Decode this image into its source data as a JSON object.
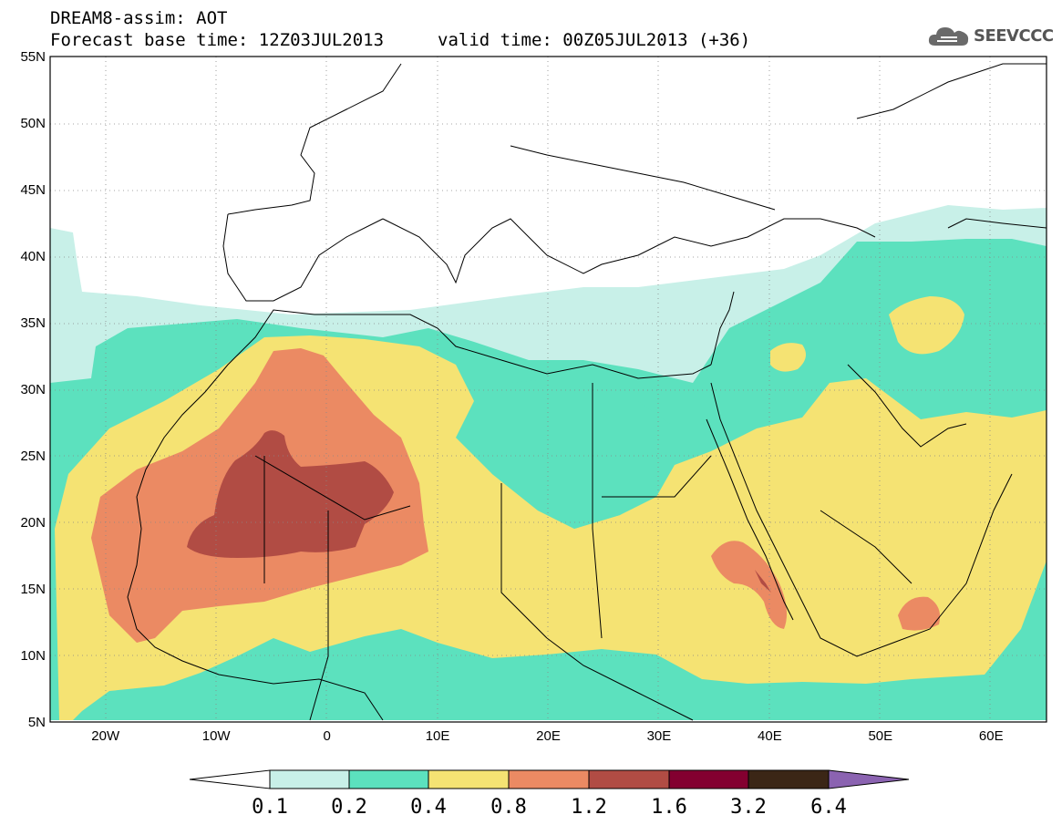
{
  "header": {
    "title_line1": "DREAM8-assim: AOT",
    "base_time": "Forecast base time: 12Z03JUL2013",
    "valid_time": "valid time: 00Z05JUL2013 (+36)",
    "logo_text": "SEEVCCC",
    "logo_icon": "cloud-icon"
  },
  "map": {
    "lat_labels": [
      "55N",
      "50N",
      "45N",
      "40N",
      "35N",
      "30N",
      "25N",
      "20N",
      "15N",
      "10N",
      "5N"
    ],
    "lon_labels": [
      "20W",
      "10W",
      "0",
      "10E",
      "20E",
      "30E",
      "40E",
      "50E",
      "60E"
    ],
    "lat_range": [
      5,
      55
    ],
    "lon_range": [
      -25,
      65
    ],
    "gridlines": true
  },
  "colorbar": {
    "levels": [
      "0.1",
      "0.2",
      "0.4",
      "0.8",
      "1.2",
      "1.6",
      "3.2",
      "6.4"
    ],
    "colors": [
      "#ffffff",
      "#c8f0e8",
      "#5ce1be",
      "#f5e373",
      "#eb8a63",
      "#b14c44",
      "#830030",
      "#3b2616",
      "#8b63b1"
    ]
  }
}
